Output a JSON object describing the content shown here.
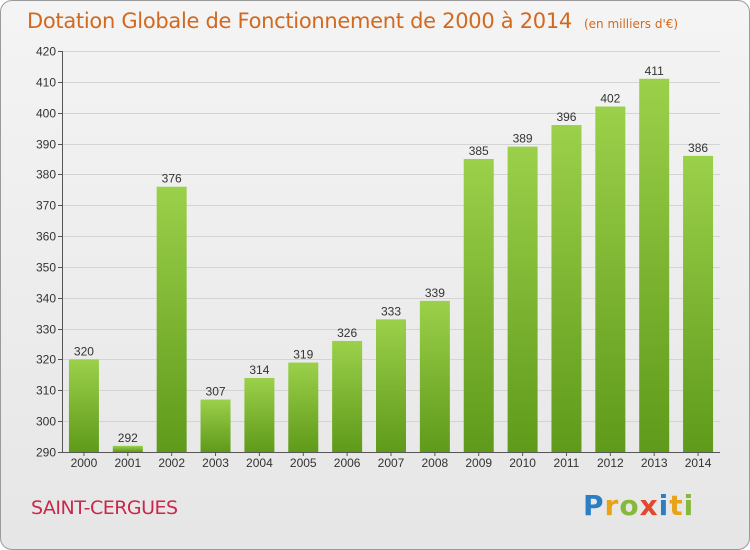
{
  "title": "Dotation Globale de Fonctionnement de 2000 à 2014",
  "unit": "(en milliers d'€)",
  "city": "SAINT-CERGUES",
  "logo": {
    "text": "Proxiti"
  },
  "colors": {
    "title": "#d2691e",
    "city": "#c8284a",
    "bar_top": "#9bd04a",
    "bar_bottom": "#5f9a1a",
    "grid": "#d4d4d4",
    "axis": "#555555",
    "text": "#333333"
  },
  "chart_data": {
    "type": "bar",
    "title": "Dotation Globale de Fonctionnement de 2000 à 2014",
    "xlabel": "",
    "ylabel": "",
    "categories": [
      "2000",
      "2001",
      "2002",
      "2003",
      "2004",
      "2005",
      "2006",
      "2007",
      "2008",
      "2009",
      "2010",
      "2011",
      "2012",
      "2013",
      "2014"
    ],
    "values": [
      320,
      292,
      376,
      307,
      314,
      319,
      326,
      333,
      339,
      385,
      389,
      396,
      402,
      411,
      386
    ],
    "ylim": [
      290,
      420
    ],
    "yticks": [
      290,
      300,
      310,
      320,
      330,
      340,
      350,
      360,
      370,
      380,
      390,
      400,
      410,
      420
    ],
    "grid": true,
    "data_labels": true
  }
}
